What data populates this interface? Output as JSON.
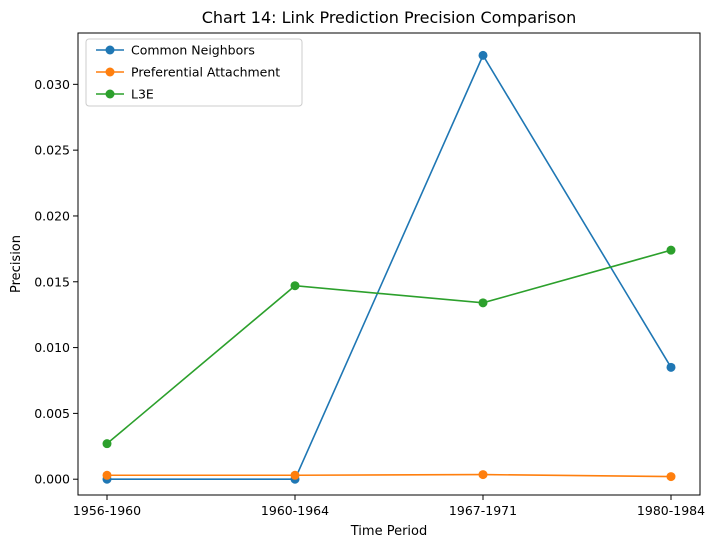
{
  "chart_data": {
    "type": "line",
    "title": "Chart 14: Link Prediction Precision Comparison",
    "xlabel": "Time Period",
    "ylabel": "Precision",
    "categories": [
      "1956-1960",
      "1960-1964",
      "1967-1971",
      "1980-1984"
    ],
    "ylim": [
      -0.0012,
      0.0339
    ],
    "yticks": [
      "0.000",
      "0.005",
      "0.010",
      "0.015",
      "0.020",
      "0.025",
      "0.030"
    ],
    "ytick_values": [
      0.0,
      0.005,
      0.01,
      0.015,
      0.02,
      0.025,
      0.03
    ],
    "grid": false,
    "legend_position": "top-left",
    "markers": "circle",
    "series": [
      {
        "name": "Common Neighbors",
        "color": "#1f77b4",
        "values": [
          0.0,
          0.0,
          0.0322,
          0.0085
        ]
      },
      {
        "name": "Preferential Attachment",
        "color": "#ff7f0e",
        "values": [
          0.0003,
          0.0003,
          0.00035,
          0.0002
        ]
      },
      {
        "name": "L3E",
        "color": "#2ca02c",
        "values": [
          0.0027,
          0.0147,
          0.0134,
          0.0174
        ]
      }
    ]
  }
}
